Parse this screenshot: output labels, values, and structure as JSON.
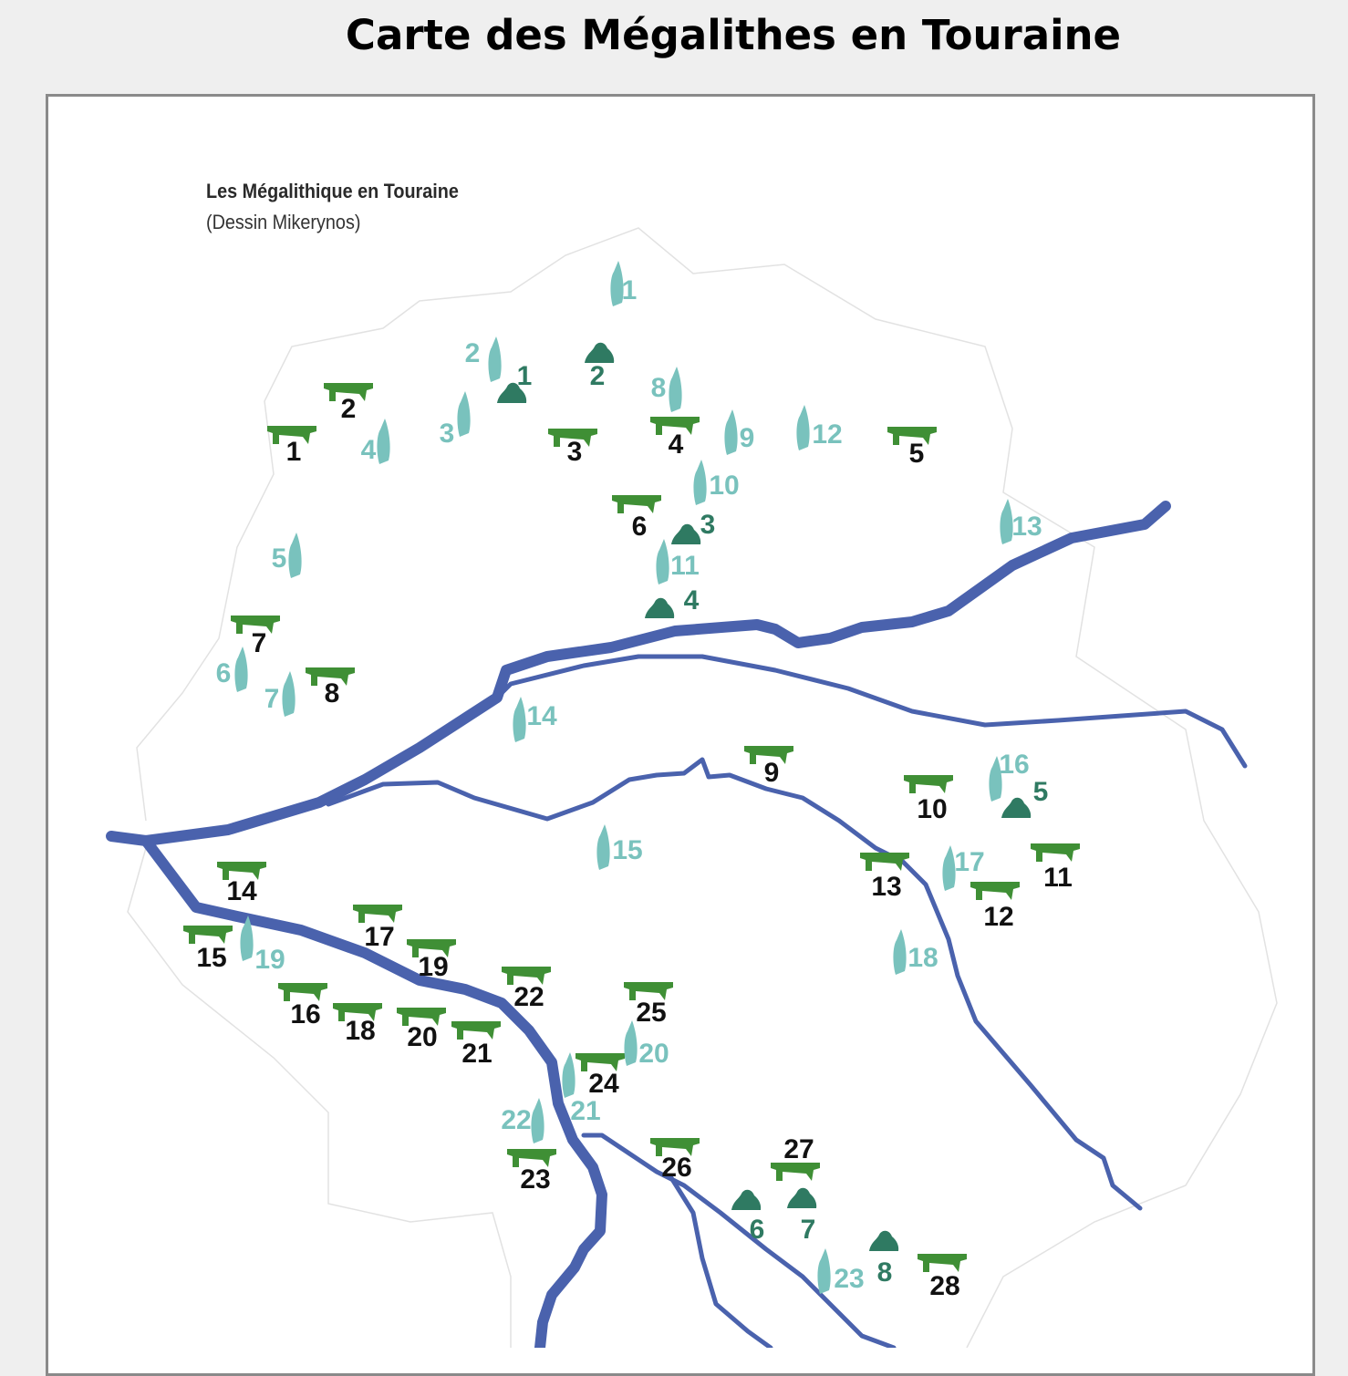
{
  "title": "Carte des Mégalithes en Touraine",
  "map": {
    "heading": "Les Mégalithique en Touraine",
    "credit": "(Dessin Mikerynos)",
    "colors": {
      "dolmen": "#3f8f35",
      "dolmen_label": "#111111",
      "menhir": "#79c2bd",
      "menhir_label": "#79c2bd",
      "tumulus": "#2f7a62",
      "tumulus_label": "#2f7a62",
      "river": "#4a62ad",
      "communes": "#e2e2e2"
    },
    "dolmens": [
      "1",
      "2",
      "3",
      "4",
      "5",
      "6",
      "7",
      "8",
      "9",
      "10",
      "11",
      "12",
      "13",
      "14",
      "15",
      "16",
      "17",
      "18",
      "19",
      "20",
      "21",
      "22",
      "23",
      "24",
      "25",
      "26",
      "27",
      "28"
    ],
    "menhirs": [
      "1",
      "2",
      "3",
      "4",
      "5",
      "6",
      "7",
      "8",
      "9",
      "10",
      "11",
      "12",
      "13",
      "14",
      "15",
      "16",
      "17",
      "18",
      "19",
      "20",
      "21",
      "22",
      "23"
    ],
    "tumuli": [
      "1",
      "2",
      "3",
      "4",
      "5",
      "6",
      "7",
      "8"
    ]
  }
}
